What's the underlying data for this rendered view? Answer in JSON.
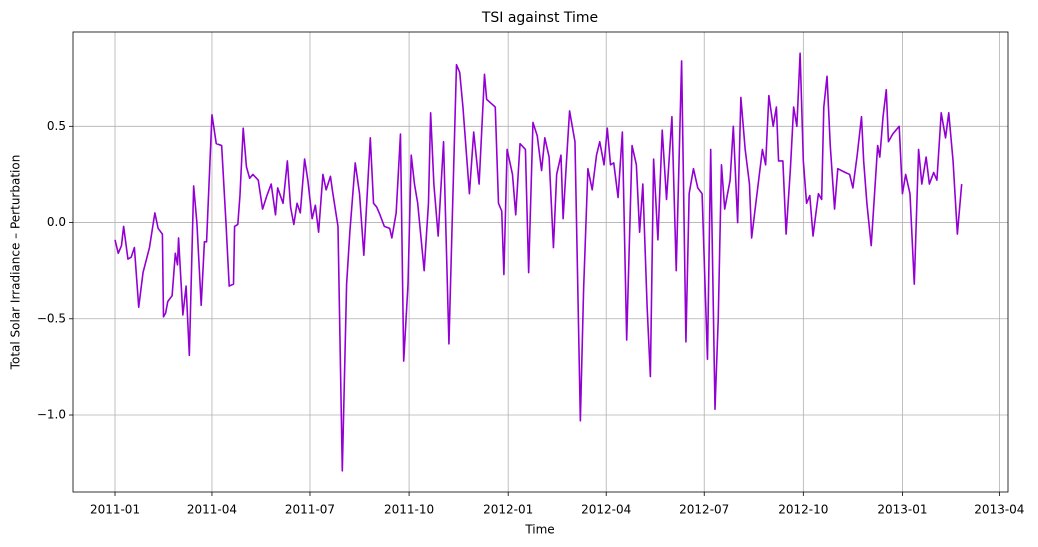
{
  "chart_data": {
    "type": "line",
    "title": "TSI against Time",
    "x_label": "Time",
    "y_label": "Total Solar Irradiance – Perturbation",
    "x": [
      "2011-01-01",
      "2011-01-04",
      "2011-01-07",
      "2011-01-09",
      "2011-01-13",
      "2011-01-16",
      "2011-01-19",
      "2011-01-23",
      "2011-01-27",
      "2011-02-02",
      "2011-02-07",
      "2011-02-10",
      "2011-02-14",
      "2011-02-15",
      "2011-02-17",
      "2011-02-19",
      "2011-02-23",
      "2011-02-26",
      "2011-02-28",
      "2011-03-01",
      "2011-03-05",
      "2011-03-08",
      "2011-03-11",
      "2011-03-15",
      "2011-03-18",
      "2011-03-22",
      "2011-03-25",
      "2011-03-27",
      "2011-04-01",
      "2011-04-05",
      "2011-04-10",
      "2011-04-14",
      "2011-04-17",
      "2011-04-21",
      "2011-04-22",
      "2011-04-25",
      "2011-04-27",
      "2011-04-30",
      "2011-05-03",
      "2011-05-06",
      "2011-05-09",
      "2011-05-14",
      "2011-05-18",
      "2011-05-22",
      "2011-05-26",
      "2011-05-30",
      "2011-06-01",
      "2011-06-06",
      "2011-06-10",
      "2011-06-13",
      "2011-06-16",
      "2011-06-19",
      "2011-06-22",
      "2011-06-26",
      "2011-06-29",
      "2011-07-03",
      "2011-07-06",
      "2011-07-09",
      "2011-07-13",
      "2011-07-16",
      "2011-07-20",
      "2011-07-22",
      "2011-07-27",
      "2011-07-31",
      "2011-08-04",
      "2011-08-07",
      "2011-08-12",
      "2011-08-16",
      "2011-08-20",
      "2011-08-26",
      "2011-08-29",
      "2011-09-01",
      "2011-09-04",
      "2011-09-08",
      "2011-09-13",
      "2011-09-15",
      "2011-09-19",
      "2011-09-23",
      "2011-09-26",
      "2011-09-30",
      "2011-10-03",
      "2011-10-06",
      "2011-10-09",
      "2011-10-15",
      "2011-10-19",
      "2011-10-21",
      "2011-10-24",
      "2011-10-28",
      "2011-11-02",
      "2011-11-07",
      "2011-11-10",
      "2011-11-14",
      "2011-11-17",
      "2011-11-20",
      "2011-11-26",
      "2011-11-30",
      "2011-12-05",
      "2011-12-10",
      "2011-12-12",
      "2011-12-16",
      "2011-12-20",
      "2011-12-23",
      "2011-12-26",
      "2011-12-28",
      "2011-12-31",
      "2012-01-05",
      "2012-01-08",
      "2012-01-12",
      "2012-01-17",
      "2012-01-20",
      "2012-01-24",
      "2012-01-28",
      "2012-02-01",
      "2012-02-04",
      "2012-02-08",
      "2012-02-12",
      "2012-02-15",
      "2012-02-19",
      "2012-02-21",
      "2012-02-25",
      "2012-02-27",
      "2012-03-03",
      "2012-03-08",
      "2012-03-11",
      "2012-03-15",
      "2012-03-19",
      "2012-03-23",
      "2012-03-26",
      "2012-03-30",
      "2012-04-02",
      "2012-04-05",
      "2012-04-08",
      "2012-04-12",
      "2012-04-16",
      "2012-04-20",
      "2012-04-25",
      "2012-04-29",
      "2012-05-02",
      "2012-05-05",
      "2012-05-09",
      "2012-05-12",
      "2012-05-15",
      "2012-05-19",
      "2012-05-23",
      "2012-05-27",
      "2012-06-01",
      "2012-06-05",
      "2012-06-10",
      "2012-06-14",
      "2012-06-17",
      "2012-06-21",
      "2012-06-25",
      "2012-06-29",
      "2012-07-04",
      "2012-07-07",
      "2012-07-11",
      "2012-07-14",
      "2012-07-17",
      "2012-07-20",
      "2012-07-25",
      "2012-07-28",
      "2012-08-01",
      "2012-08-04",
      "2012-08-08",
      "2012-08-12",
      "2012-08-14",
      "2012-08-19",
      "2012-08-24",
      "2012-08-27",
      "2012-08-30",
      "2012-09-03",
      "2012-09-06",
      "2012-09-08",
      "2012-09-12",
      "2012-09-15",
      "2012-09-19",
      "2012-09-22",
      "2012-09-25",
      "2012-09-28",
      "2012-10-01",
      "2012-10-04",
      "2012-10-07",
      "2012-10-10",
      "2012-10-15",
      "2012-10-18",
      "2012-10-20",
      "2012-10-23",
      "2012-10-26",
      "2012-10-30",
      "2012-11-02",
      "2012-11-09",
      "2012-11-13",
      "2012-11-16",
      "2012-11-20",
      "2012-11-24",
      "2012-11-26",
      "2012-11-29",
      "2012-12-03",
      "2012-12-09",
      "2012-12-11",
      "2012-12-14",
      "2012-12-17",
      "2012-12-19",
      "2012-12-23",
      "2012-12-29",
      "2013-01-01",
      "2013-01-04",
      "2013-01-08",
      "2013-01-12",
      "2013-01-16",
      "2013-01-19",
      "2013-01-23",
      "2013-01-26",
      "2013-01-30",
      "2013-02-02",
      "2013-02-06",
      "2013-02-10",
      "2013-02-13",
      "2013-02-17",
      "2013-02-21",
      "2013-02-25"
    ],
    "series": [
      {
        "color": "#9400d3",
        "values": [
          -0.09,
          -0.16,
          -0.12,
          -0.02,
          -0.19,
          -0.18,
          -0.13,
          -0.44,
          -0.26,
          -0.13,
          0.05,
          -0.03,
          -0.06,
          -0.49,
          -0.47,
          -0.41,
          -0.38,
          -0.16,
          -0.22,
          -0.08,
          -0.48,
          -0.33,
          -0.69,
          0.19,
          0.0,
          -0.43,
          -0.1,
          -0.1,
          0.56,
          0.41,
          0.4,
          0.0,
          -0.33,
          -0.32,
          -0.02,
          -0.01,
          0.14,
          0.49,
          0.29,
          0.23,
          0.25,
          0.22,
          0.07,
          0.14,
          0.2,
          0.04,
          0.18,
          0.1,
          0.32,
          0.08,
          -0.01,
          0.1,
          0.05,
          0.33,
          0.22,
          0.02,
          0.09,
          -0.05,
          0.25,
          0.17,
          0.24,
          0.16,
          -0.02,
          -1.29,
          -0.32,
          -0.05,
          0.31,
          0.15,
          -0.17,
          0.44,
          0.1,
          0.08,
          0.04,
          -0.02,
          -0.03,
          -0.08,
          0.05,
          0.46,
          -0.72,
          -0.32,
          0.35,
          0.2,
          0.1,
          -0.25,
          0.1,
          0.57,
          0.2,
          -0.07,
          0.42,
          -0.63,
          0.0,
          0.82,
          0.78,
          0.6,
          0.15,
          0.47,
          0.2,
          0.77,
          0.64,
          0.62,
          0.6,
          0.1,
          0.06,
          -0.27,
          0.38,
          0.25,
          0.04,
          0.41,
          0.38,
          -0.26,
          0.52,
          0.45,
          0.27,
          0.44,
          0.34,
          -0.13,
          0.25,
          0.35,
          0.02,
          0.4,
          0.58,
          0.42,
          -1.03,
          -0.35,
          0.28,
          0.17,
          0.35,
          0.42,
          0.3,
          0.49,
          0.3,
          0.31,
          0.13,
          0.47,
          -0.61,
          0.4,
          0.3,
          -0.05,
          0.2,
          -0.44,
          -0.8,
          0.33,
          -0.09,
          0.48,
          0.12,
          0.55,
          -0.25,
          0.84,
          -0.62,
          0.15,
          0.28,
          0.18,
          0.15,
          -0.71,
          0.38,
          -0.97,
          -0.5,
          0.3,
          0.07,
          0.22,
          0.5,
          0.0,
          0.65,
          0.38,
          0.2,
          -0.08,
          0.15,
          0.38,
          0.3,
          0.66,
          0.5,
          0.6,
          0.32,
          0.32,
          -0.06,
          0.28,
          0.6,
          0.5,
          0.88,
          0.32,
          0.1,
          0.14,
          -0.07,
          0.15,
          0.12,
          0.6,
          0.76,
          0.4,
          0.07,
          0.28,
          0.26,
          0.25,
          0.18,
          0.35,
          0.55,
          0.32,
          0.1,
          -0.12,
          0.4,
          0.34,
          0.55,
          0.69,
          0.42,
          0.46,
          0.5,
          0.15,
          0.25,
          0.15,
          -0.32,
          0.38,
          0.2,
          0.34,
          0.2,
          0.26,
          0.22,
          0.57,
          0.44,
          0.57,
          0.32,
          -0.06,
          0.2
        ]
      }
    ],
    "xlim": [
      "2010-11-23",
      "2013-04-09"
    ],
    "xticks": [
      "2011-01",
      "2011-04",
      "2011-07",
      "2011-10",
      "2012-01",
      "2012-04",
      "2012-07",
      "2012-10",
      "2013-01",
      "2013-04"
    ],
    "ylim": [
      -1.4,
      0.99
    ],
    "yticks": [
      {
        "value": -1.0,
        "label": "−1.0"
      },
      {
        "value": -0.5,
        "label": "−0.5"
      },
      {
        "value": 0.0,
        "label": "0.0"
      },
      0.5
    ],
    "grid": true
  }
}
